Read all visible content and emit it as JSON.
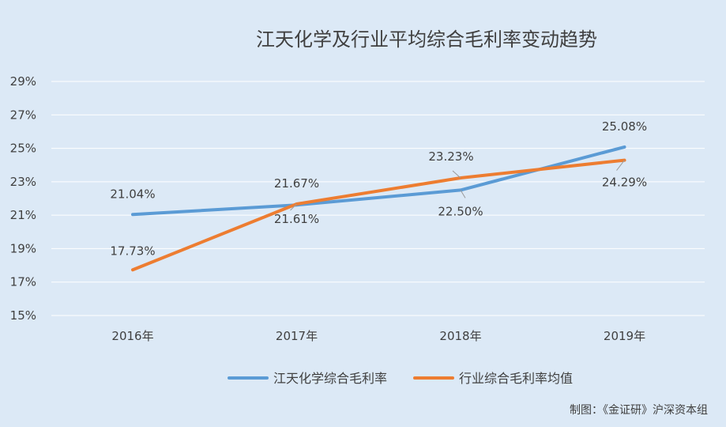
{
  "chart_data": {
    "type": "line",
    "title": "江天化学及行业平均综合毛利率变动趋势",
    "categories": [
      "2016年",
      "2017年",
      "2018年",
      "2019年"
    ],
    "y_ticks": [
      "15%",
      "17%",
      "19%",
      "21%",
      "23%",
      "25%",
      "27%",
      "29%"
    ],
    "ylim": [
      15,
      29
    ],
    "grid": true,
    "legend_position": "bottom",
    "series": [
      {
        "name": "江天化学综合毛利率",
        "color": "#5b9bd5",
        "values": [
          21.04,
          21.61,
          22.5,
          25.08
        ],
        "labels": [
          "21.04%",
          "21.61%",
          "22.50%",
          "25.08%"
        ]
      },
      {
        "name": "行业综合毛利率均值",
        "color": "#ed7d31",
        "values": [
          17.73,
          21.67,
          23.23,
          24.29
        ],
        "labels": [
          "17.73%",
          "21.67%",
          "23.23%",
          "24.29%"
        ]
      }
    ]
  },
  "credit": "制图：《金证研》沪深资本组"
}
